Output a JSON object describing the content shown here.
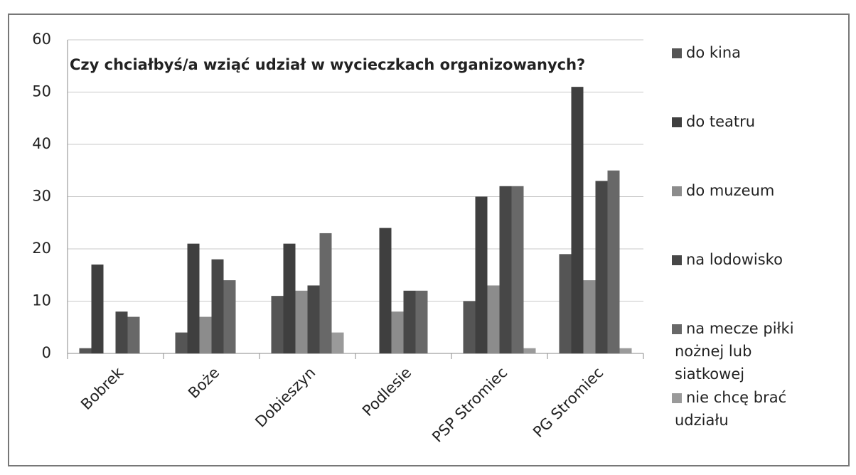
{
  "chart_data": {
    "type": "bar",
    "title": "Czy chciałbyś/a wziąć udział w wycieczkach organizowanych?",
    "categories": [
      "Bobrek",
      "Boże",
      "Dobieszyn",
      "Podlesie",
      "PSP Stromiec",
      "PG Stromiec"
    ],
    "series": [
      {
        "name": "do kina",
        "color": "#555555",
        "values": [
          1,
          4,
          11,
          0,
          10,
          19
        ]
      },
      {
        "name": "do teatru",
        "color": "#3f3f3f",
        "values": [
          17,
          21,
          21,
          24,
          30,
          51
        ]
      },
      {
        "name": "do muzeum",
        "color": "#8c8c8c",
        "values": [
          0,
          7,
          12,
          8,
          13,
          14
        ]
      },
      {
        "name": "na lodowisko",
        "color": "#474747",
        "values": [
          8,
          18,
          13,
          12,
          32,
          33
        ]
      },
      {
        "name": "na mecze piłki nożnej lub siatkowej",
        "color": "#686868",
        "values": [
          7,
          14,
          23,
          12,
          32,
          35
        ]
      },
      {
        "name": "nie chcę brać udziału",
        "color": "#9a9a9a",
        "values": [
          0,
          0,
          4,
          0,
          1,
          1
        ]
      }
    ],
    "ylim": [
      0,
      60
    ],
    "yticks": [
      0,
      10,
      20,
      30,
      40,
      50,
      60
    ],
    "grid": true,
    "legend": "right"
  }
}
